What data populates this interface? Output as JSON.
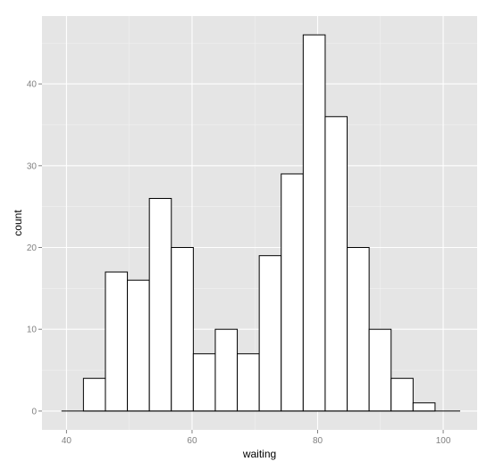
{
  "chart_data": {
    "type": "bar",
    "subtype": "histogram",
    "title": "",
    "xlabel": "waiting",
    "ylabel": "count",
    "xlim": [
      36.1,
      105.4
    ],
    "ylim": [
      -2.3,
      48.3
    ],
    "x_ticks": [
      40,
      60,
      80,
      100
    ],
    "y_ticks": [
      0,
      10,
      20,
      30,
      40
    ],
    "x_tick_labels": [
      "40",
      "60",
      "80",
      "100"
    ],
    "y_tick_labels": [
      "0",
      "10",
      "20",
      "30",
      "40"
    ],
    "grid": true,
    "legend": "none",
    "baseline_range": [
      39.2,
      102.7
    ],
    "bins": [
      {
        "x0": 42.7,
        "x1": 46.2,
        "count": 4
      },
      {
        "x0": 46.2,
        "x1": 49.7,
        "count": 17
      },
      {
        "x0": 49.7,
        "x1": 53.2,
        "count": 16
      },
      {
        "x0": 53.2,
        "x1": 56.7,
        "count": 26
      },
      {
        "x0": 56.7,
        "x1": 60.2,
        "count": 20
      },
      {
        "x0": 60.2,
        "x1": 63.7,
        "count": 7
      },
      {
        "x0": 63.7,
        "x1": 67.2,
        "count": 10
      },
      {
        "x0": 67.2,
        "x1": 70.7,
        "count": 7
      },
      {
        "x0": 70.7,
        "x1": 74.2,
        "count": 19
      },
      {
        "x0": 74.2,
        "x1": 77.7,
        "count": 29
      },
      {
        "x0": 77.7,
        "x1": 81.2,
        "count": 46
      },
      {
        "x0": 81.2,
        "x1": 84.7,
        "count": 36
      },
      {
        "x0": 84.7,
        "x1": 88.2,
        "count": 20
      },
      {
        "x0": 88.2,
        "x1": 91.7,
        "count": 10
      },
      {
        "x0": 91.7,
        "x1": 95.2,
        "count": 4
      },
      {
        "x0": 95.2,
        "x1": 98.7,
        "count": 1
      }
    ],
    "colors": {
      "panel": "#E5E5E5",
      "grid_major": "#FFFFFF",
      "grid_minor": "#F2F2F2",
      "bar_fill": "#FFFFFF",
      "bar_stroke": "#000000",
      "tick_text": "#808080",
      "tick_mark": "#808080"
    }
  }
}
